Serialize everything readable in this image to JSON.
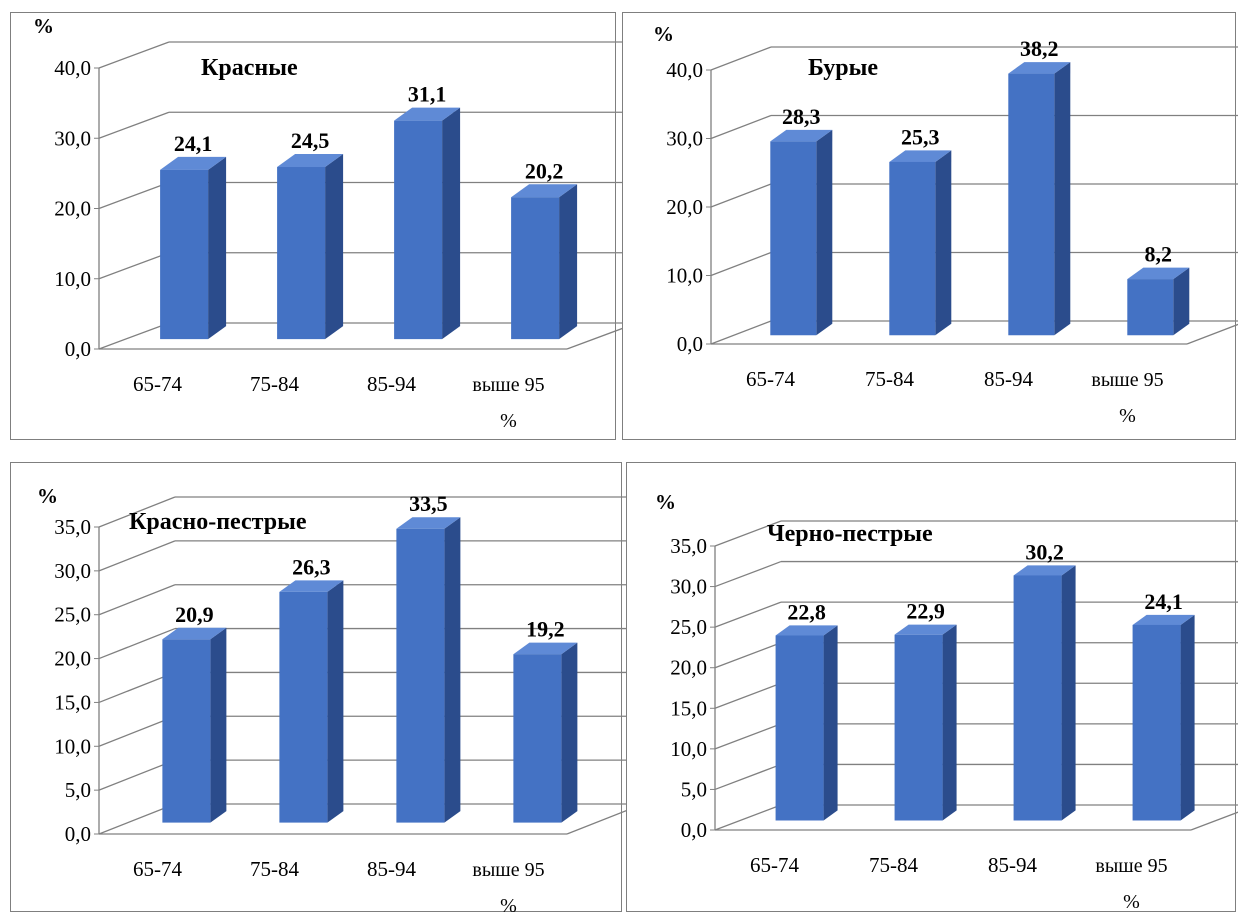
{
  "colors": {
    "bar_front": "#4472c4",
    "bar_side": "#2b4c8c",
    "bar_top": "#5f8ad6",
    "grid": "#808080",
    "axis": "#808080"
  },
  "chart_data": [
    {
      "type": "bar",
      "title": "Красные",
      "ylabel": "%",
      "categories": [
        "65-74",
        "75-84",
        "85-94",
        "выше 95 %"
      ],
      "values": [
        24.1,
        24.5,
        31.1,
        20.2
      ],
      "value_labels": [
        "24,1",
        "24,5",
        "31,1",
        "20,2"
      ],
      "ylim": [
        0,
        40
      ],
      "yticks": [
        "0,0",
        "10,0",
        "20,0",
        "30,0",
        "40,0"
      ],
      "grid": true,
      "legend": "none"
    },
    {
      "type": "bar",
      "title": "Бурые",
      "ylabel": "%",
      "categories": [
        "65-74",
        "75-84",
        "85-94",
        "выше 95 %"
      ],
      "values": [
        28.3,
        25.3,
        38.2,
        8.2
      ],
      "value_labels": [
        "28,3",
        "25,3",
        "38,2",
        "8,2"
      ],
      "ylim": [
        0,
        40
      ],
      "yticks": [
        "0,0",
        "10,0",
        "20,0",
        "30,0",
        "40,0"
      ],
      "grid": true,
      "legend": "none"
    },
    {
      "type": "bar",
      "title": "Красно-пестрые",
      "ylabel": "%",
      "categories": [
        "65-74",
        "75-84",
        "85-94",
        "выше 95 %"
      ],
      "values": [
        20.9,
        26.3,
        33.5,
        19.2
      ],
      "value_labels": [
        "20,9",
        "26,3",
        "33,5",
        "19,2"
      ],
      "ylim": [
        0,
        35
      ],
      "yticks": [
        "0,0",
        "5,0",
        "10,0",
        "15,0",
        "20,0",
        "25,0",
        "30,0",
        "35,0"
      ],
      "grid": true,
      "legend": "none"
    },
    {
      "type": "bar",
      "title": "Черно-пестрые",
      "ylabel": "%",
      "categories": [
        "65-74",
        "75-84",
        "85-94",
        "выше 95 %"
      ],
      "values": [
        22.8,
        22.9,
        30.2,
        24.1
      ],
      "value_labels": [
        "22,8",
        "22,9",
        "30,2",
        "24,1"
      ],
      "ylim": [
        0,
        35
      ],
      "yticks": [
        "0,0",
        "5,0",
        "10,0",
        "15,0",
        "20,0",
        "25,0",
        "30,0",
        "35,0"
      ],
      "grid": true,
      "legend": "none"
    }
  ]
}
